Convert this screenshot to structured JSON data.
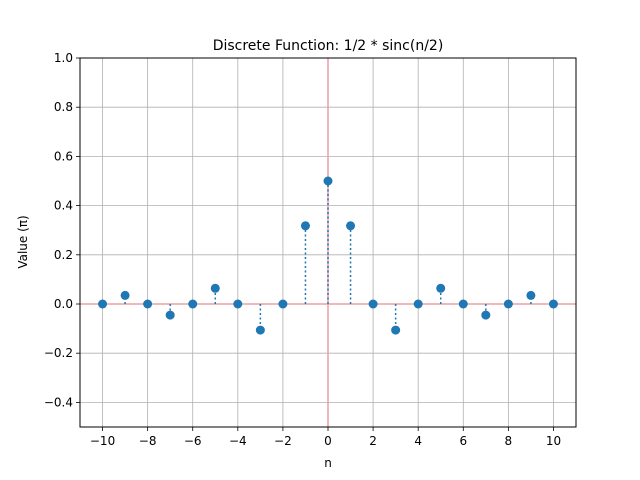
{
  "chart_data": {
    "type": "stem",
    "title": "Discrete Function: 1/2 * sinc(n/2)",
    "xlabel": "n",
    "ylabel": "Value (π)",
    "xlim": [
      -11,
      11
    ],
    "ylim": [
      -0.5,
      1.0
    ],
    "xticks": [
      -10,
      -8,
      -6,
      -4,
      -2,
      0,
      2,
      4,
      6,
      8,
      10
    ],
    "xtick_labels": [
      "−10",
      "−8",
      "−6",
      "−4",
      "−2",
      "0",
      "2",
      "4",
      "6",
      "8",
      "10"
    ],
    "yticks": [
      -0.4,
      -0.2,
      0.0,
      0.2,
      0.4,
      0.6,
      0.8,
      1.0
    ],
    "ytick_labels": [
      "−0.4",
      "−0.2",
      "0.0",
      "0.2",
      "0.4",
      "0.6",
      "0.8",
      "1.0"
    ],
    "grid": true,
    "x": [
      -10,
      -9,
      -8,
      -7,
      -6,
      -5,
      -4,
      -3,
      -2,
      -1,
      0,
      1,
      2,
      3,
      4,
      5,
      6,
      7,
      8,
      9,
      10
    ],
    "values": [
      0.0,
      0.035,
      0.0,
      -0.045,
      0.0,
      0.064,
      0.0,
      -0.106,
      0.0,
      0.318,
      0.5,
      0.318,
      0.0,
      -0.106,
      0.0,
      0.064,
      0.0,
      -0.045,
      0.0,
      0.035,
      0.0
    ],
    "colors": {
      "series": "#1f77b4",
      "reference_lines": "#e8a0a6",
      "grid": "#b0b0b0"
    }
  }
}
